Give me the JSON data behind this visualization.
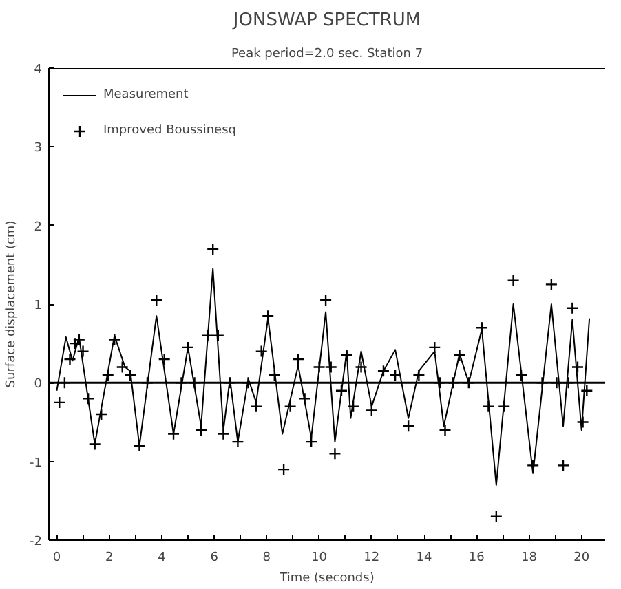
{
  "chart_data": {
    "type": "line",
    "title": "JONSWAP SPECTRUM",
    "subtitle": "Peak period=2.0 sec. Station 7",
    "xlabel": "Time (seconds)",
    "ylabel": "Surface displacement (cm)",
    "xlim": [
      -0.3,
      20.9
    ],
    "ylim": [
      -2,
      4
    ],
    "xticks": [
      0,
      {
        "value": 1,
        "label": null
      },
      2,
      {
        "value": 3,
        "label": null
      },
      4,
      {
        "value": 5,
        "label": null
      },
      6,
      {
        "value": 7,
        "label": null
      },
      8,
      {
        "value": 9,
        "label": null
      },
      10,
      {
        "value": 11,
        "label": null
      },
      12,
      {
        "value": 13,
        "label": null
      },
      14,
      {
        "value": 15,
        "label": null
      },
      16,
      {
        "value": 17,
        "label": null
      },
      18,
      {
        "value": 19,
        "label": null
      },
      20
    ],
    "yticks": [
      -2,
      -1,
      0,
      1,
      2,
      3,
      4
    ],
    "grid": false,
    "legend": "top left",
    "ref_lines": [
      {
        "axis": "y",
        "value": 0,
        "label": null,
        "color": "#000000"
      }
    ],
    "series": [
      {
        "name": "Measurement",
        "color": "#000000",
        "marker": "none",
        "line_style": "solid",
        "x": [
          0.0,
          0.35,
          0.6,
          0.85,
          1.45,
          2.2,
          2.6,
          2.8,
          3.15,
          3.8,
          4.45,
          5.0,
          5.5,
          5.95,
          6.35,
          6.6,
          6.9,
          7.3,
          7.6,
          8.05,
          8.6,
          9.2,
          9.7,
          10.25,
          10.6,
          11.05,
          11.2,
          11.6,
          12.0,
          12.45,
          12.9,
          13.4,
          13.8,
          14.4,
          14.75,
          15.35,
          15.7,
          16.2,
          16.75,
          17.4,
          18.15,
          18.85,
          19.3,
          19.65,
          20.0,
          20.3
        ],
        "values": [
          -0.1,
          0.58,
          0.28,
          0.58,
          -0.78,
          0.6,
          0.2,
          0.15,
          -0.8,
          0.85,
          -0.65,
          0.45,
          -0.55,
          1.45,
          -0.6,
          0.05,
          -0.75,
          0.05,
          -0.25,
          0.82,
          -0.65,
          0.22,
          -0.7,
          0.9,
          -0.75,
          0.4,
          -0.45,
          0.4,
          -0.3,
          0.15,
          0.42,
          -0.45,
          0.15,
          0.4,
          -0.55,
          0.37,
          0.0,
          0.68,
          -1.3,
          1.0,
          -1.15,
          1.0,
          -0.55,
          0.8,
          -0.6,
          0.82
        ]
      },
      {
        "name": "Improved Boussinesq",
        "type": "scatter",
        "color": "#000000",
        "marker": "cross",
        "x": [
          0.1,
          0.3,
          0.5,
          0.7,
          0.85,
          1.0,
          1.2,
          1.45,
          1.7,
          1.95,
          2.2,
          2.5,
          2.8,
          3.15,
          3.45,
          3.8,
          4.1,
          4.45,
          4.75,
          5.0,
          5.25,
          5.5,
          5.75,
          5.95,
          6.15,
          6.35,
          6.6,
          6.9,
          7.3,
          7.6,
          7.8,
          8.05,
          8.3,
          8.65,
          8.9,
          9.2,
          9.45,
          9.7,
          10.0,
          10.25,
          10.45,
          10.6,
          10.85,
          11.05,
          11.3,
          11.6,
          12.0,
          12.45,
          12.9,
          13.4,
          13.8,
          14.4,
          14.6,
          14.8,
          15.1,
          15.35,
          15.7,
          16.2,
          16.45,
          16.75,
          17.05,
          17.4,
          17.7,
          18.15,
          18.5,
          18.85,
          19.05,
          19.3,
          19.5,
          19.65,
          19.85,
          20.05,
          20.2
        ],
        "values": [
          -0.25,
          0.0,
          0.3,
          0.5,
          0.55,
          0.4,
          -0.2,
          -0.78,
          -0.4,
          0.1,
          0.55,
          0.2,
          0.1,
          -0.8,
          0.0,
          1.05,
          0.3,
          -0.65,
          0.0,
          0.45,
          0.0,
          -0.6,
          0.6,
          1.7,
          0.6,
          -0.65,
          0.0,
          -0.75,
          0.0,
          -0.3,
          0.4,
          0.85,
          0.1,
          -1.1,
          -0.3,
          0.3,
          -0.2,
          -0.75,
          0.2,
          1.05,
          0.2,
          -0.9,
          -0.1,
          0.35,
          -0.3,
          0.2,
          -0.35,
          0.15,
          0.1,
          -0.55,
          0.1,
          0.45,
          0.0,
          -0.6,
          0.0,
          0.35,
          0.0,
          0.7,
          -0.3,
          -1.7,
          -0.3,
          1.3,
          0.1,
          -1.05,
          0.0,
          1.25,
          0.0,
          -1.05,
          0.0,
          0.95,
          0.2,
          -0.5,
          -0.1
        ]
      }
    ]
  }
}
